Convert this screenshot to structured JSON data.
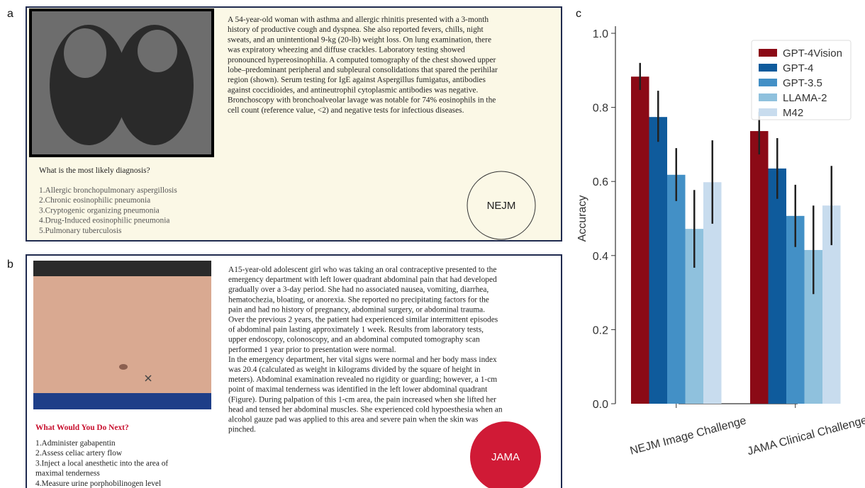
{
  "panel_a": {
    "letter": "a",
    "text_lines": [
      "A 54-year-old woman with asthma and allergic rhinitis presented with a 3-month",
      "history of productive cough and dyspnea. She also reported fevers, chills, night",
      "sweats, and an unintentional 9-kg (20-lb) weight loss. On lung examination, there",
      "was expiratory wheezing and diffuse crackles. Laboratory testing showed",
      "pronounced hypereosinophilia. A computed tomography of the chest showed upper",
      "lobe–predominant peripheral and subpleural consolidations that spared the perihilar",
      "region (shown). Serum testing for IgE against Aspergillus fumigatus, antibodies",
      "against coccidioides, and antineutrophil cytoplasmic antibodies was negative.",
      "Bronchoscopy with bronchoalveolar lavage was notable for 74% eosinophils in the",
      "cell count (reference value, <2) and negative tests for infectious diseases."
    ],
    "question": "What is the most likely diagnosis?",
    "options": [
      "1.Allergic bronchopulmonary aspergillosis",
      "2.Chronic eosinophilic pneumonia",
      "3.Cryptogenic organizing pneumonia",
      "4.Drug-Induced eosinophilic pneumonia",
      "5.Pulmonary tuberculosis"
    ],
    "badge": "NEJM"
  },
  "panel_b": {
    "letter": "b",
    "text_lines": [
      "A15-year-old adolescent girl who was taking an oral contraceptive presented to the",
      "emergency department with left lower quadrant abdominal pain that had developed",
      "gradually over a 3-day period. She had no associated nausea, vomiting, diarrhea,",
      "hematochezia, bloating, or anorexia. She reported no precipitating factors for the",
      "pain and had no history of pregnancy, abdominal surgery, or abdominal trauma.",
      "Over the previous 2 years, the patient had experienced similar intermittent episodes",
      "of abdominal pain lasting approximately 1 week. Results from laboratory tests,",
      "upper endoscopy, colonoscopy, and an abdominal computed tomography scan",
      "performed 1 year prior to presentation were normal.",
      "In the emergency department, her vital signs were normal and her body mass index",
      "was 20.4 (calculated as weight in kilograms divided by the square of height in",
      "meters). Abdominal examination revealed no rigidity or guarding; however, a 1-cm",
      "point of maximal tenderness was identified in the left lower abdominal quadrant",
      "(Figure). During palpation of this 1-cm area, the pain increased when she lifted her",
      "head and tensed her abdominal muscles. She experienced cold hypoesthesia when an",
      "alcohol gauze pad was applied to this area and severe pain when the skin was",
      "pinched."
    ],
    "question": "What Would You Do Next?",
    "options": [
      "1.Administer gabapentin",
      "2.Assess celiac artery flow",
      "3.Inject a local anesthetic into the area of",
      "maximal tenderness",
      "4.Measure urine porphobilinogen level"
    ],
    "badge": "JAMA"
  },
  "chart_data": {
    "type": "bar",
    "panel_letter": "c",
    "y_label": "Accuracy",
    "categories": [
      "NEJM Image Challenge",
      "JAMA Clinical Challenge"
    ],
    "ylim": [
      0,
      1.0
    ],
    "yticks": [
      {
        "value": 0,
        "label": "0.0"
      },
      0.2,
      0.4,
      0.6,
      0.8,
      {
        "value": 1.0,
        "label": "1.0"
      }
    ],
    "legend": "upper right",
    "series": [
      {
        "name": "GPT-4Vision",
        "color": "#8b0a16",
        "values": [
          0.883,
          0.736
        ],
        "ci_low": [
          0.847,
          0.673
        ],
        "ci_high": [
          0.92,
          0.788
        ]
      },
      {
        "name": "GPT-4",
        "color": "#0f5b9c",
        "values": [
          0.774,
          0.635
        ],
        "ci_low": [
          0.707,
          0.553
        ],
        "ci_high": [
          0.845,
          0.717
        ]
      },
      {
        "name": "GPT-3.5",
        "color": "#4390c6",
        "values": [
          0.618,
          0.507
        ],
        "ci_low": [
          0.547,
          0.423
        ],
        "ci_high": [
          0.69,
          0.591
        ]
      },
      {
        "name": "LLAMA-2",
        "color": "#8fc1dd",
        "values": [
          0.472,
          0.415
        ],
        "ci_low": [
          0.367,
          0.296
        ],
        "ci_high": [
          0.577,
          0.535
        ]
      },
      {
        "name": "M42",
        "color": "#c8dcee",
        "values": [
          0.598,
          0.535
        ],
        "ci_low": [
          0.486,
          0.428
        ],
        "ci_high": [
          0.711,
          0.642
        ]
      }
    ]
  }
}
